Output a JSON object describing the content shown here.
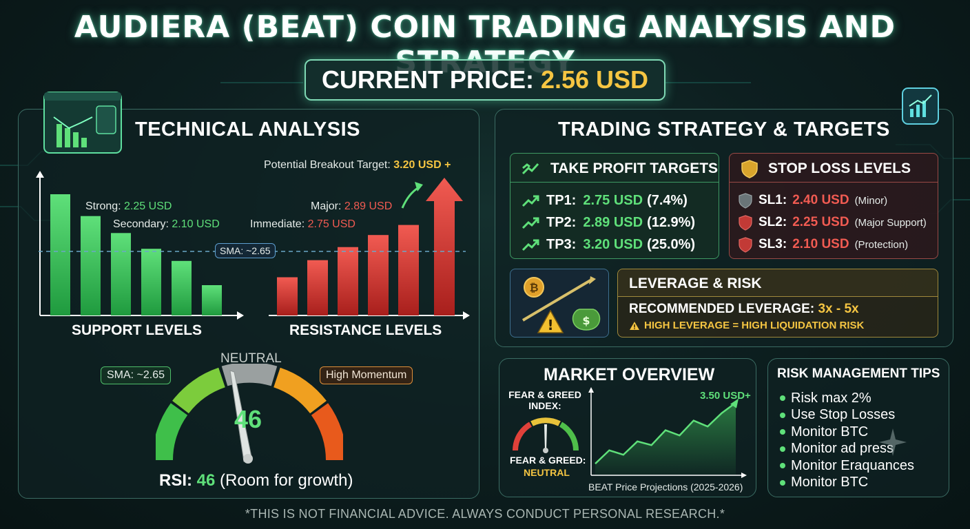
{
  "title": "AUDIERA (BEAT) COIN TRADING ANALYSIS AND STRATEGY",
  "current_price": {
    "label": "CURRENT PRICE:",
    "value": "2.56 USD"
  },
  "technical": {
    "heading": "TECHNICAL ANALYSIS",
    "breakout": {
      "label": "Potential Breakout Target:",
      "value": "3.20 USD +"
    },
    "strong": {
      "label": "Strong:",
      "value": "2.25 USD"
    },
    "secondary": {
      "label": "Secondary:",
      "value": "2.10 USD"
    },
    "major": {
      "label": "Major:",
      "value": "2.89 USD"
    },
    "immediate": {
      "label": "Immediate:",
      "value": "2.75 USD"
    },
    "sma_line": "SMA: ~2.65",
    "support_title": "SUPPORT LEVELS",
    "resistance_title": "RESISTANCE LEVELS",
    "gauge": {
      "neutral": "NEUTRAL",
      "sma": "SMA: ~2.65",
      "momentum": "High Momentum",
      "value": "46",
      "rsi_label": "RSI:",
      "rsi_value": "46",
      "rsi_note": "(Room for growth)"
    }
  },
  "chart_data": [
    {
      "type": "bar",
      "name": "support",
      "values": [
        100,
        82,
        68,
        55,
        45,
        25
      ]
    },
    {
      "type": "bar",
      "name": "resistance",
      "values": [
        38,
        55,
        68,
        80,
        90,
        100
      ]
    },
    {
      "type": "line",
      "name": "BEAT Price Projections (2025-2026)",
      "values": [
        10,
        28,
        22,
        40,
        35,
        55,
        48,
        68,
        60,
        78,
        92
      ],
      "end_label": "3.50 USD+"
    }
  ],
  "strategy": {
    "heading": "TRADING STRATEGY & TARGETS",
    "take_profit": {
      "heading": "TAKE PROFIT TARGETS",
      "rows": [
        {
          "label": "TP1:",
          "value": "2.75 USD",
          "pct": "(7.4%)"
        },
        {
          "label": "TP2:",
          "value": "2.89 USD",
          "pct": "(12.9%)"
        },
        {
          "label": "TP3:",
          "value": "3.20 USD",
          "pct": "(25.0%)"
        }
      ]
    },
    "stop_loss": {
      "heading": "STOP LOSS LEVELS",
      "rows": [
        {
          "label": "SL1:",
          "value": "2.40 USD",
          "note": "(Minor)"
        },
        {
          "label": "SL2:",
          "value": "2.25 USD",
          "note": "(Major Support)"
        },
        {
          "label": "SL3:",
          "value": "2.10 USD",
          "note": "(Protection)"
        }
      ]
    },
    "leverage": {
      "heading": "LEVERAGE & RISK",
      "recommended_label": "RECOMMENDED LEVERAGE:",
      "recommended_value": "3x - 5x",
      "warning": "HIGH LEVERAGE = HIGH LIQUIDATION RISK"
    }
  },
  "market": {
    "heading": "MARKET OVERVIEW",
    "fg_index_label": "FEAR & GREED INDEX:",
    "fg_label": "FEAR & GREED:",
    "fg_value": "NEUTRAL",
    "chart_end": "3.50 USD+",
    "chart_caption": "BEAT Price Projections (2025-2026)"
  },
  "risk_tips": {
    "heading": "RISK MANAGEMENT TIPS",
    "items": [
      "Risk max 2%",
      "Use Stop Losses",
      "Monitor BTC",
      "Monitor ad press",
      "Monitor Eraquances",
      "Monitor BTC"
    ]
  },
  "disclaimer": "*THIS IS NOT FINANCIAL ADVICE. ALWAYS CONDUCT PERSONAL RESEARCH.*",
  "colors": {
    "support_green": "#3fcf5f",
    "resistance_red": "#e2403b",
    "gold": "#f5c542",
    "accent_teal": "#7fd9b4"
  }
}
